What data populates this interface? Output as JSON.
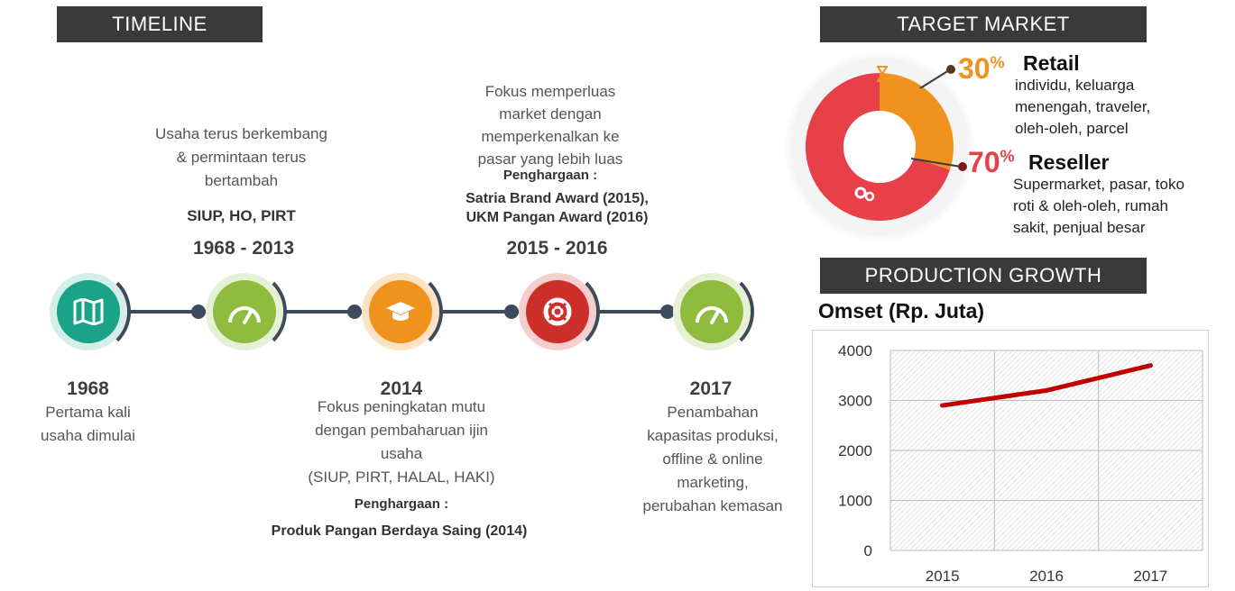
{
  "timeline": {
    "header": "TIMELINE",
    "milestones": [
      {
        "year": "1968",
        "lines": [
          "Pertama kali",
          "usaha dimulai"
        ]
      },
      {
        "range": "1968 - 2013",
        "top_lines": [
          "Usaha terus berkembang",
          "& permintaan terus",
          "bertambah"
        ],
        "top_bold": "SIUP, HO, PIRT"
      },
      {
        "year": "2014",
        "lines": [
          "Fokus peningkatan mutu",
          "dengan pembaharuan ijin",
          "usaha",
          "(SIUP, PIRT, HALAL, HAKI)"
        ],
        "award_label": "Penghargaan :",
        "award": "Produk Pangan Berdaya Saing (2014)"
      },
      {
        "range": "2015 - 2016",
        "top_lines": [
          "Fokus memperluas",
          "market dengan",
          "memperkenalkan ke",
          "pasar yang lebih luas"
        ],
        "award_label": "Penghargaan :",
        "awards": [
          "Satria Brand Award (2015),",
          "UKM Pangan Award (2016)"
        ]
      },
      {
        "year": "2017",
        "lines": [
          "Penambahan",
          "kapasitas produksi,",
          "offline & online",
          "marketing,",
          "perubahan kemasan"
        ]
      }
    ],
    "circle_icons": [
      "map-icon",
      "gauge-icon",
      "graduation-cap-icon",
      "lifebuoy-icon",
      "gauge-icon"
    ],
    "circle_colors": [
      "#1aa389",
      "#8fbc3f",
      "#f0921e",
      "#cc2f2a",
      "#8fbc3f"
    ]
  },
  "target_market": {
    "header": "TARGET MARKET",
    "segments": [
      {
        "pct": "30",
        "pct_sign": "%",
        "title": "Retail",
        "lines": [
          "individu, keluarga",
          "menengah, traveler,",
          "oleh-oleh, parcel"
        ],
        "color": "#f0921e",
        "value": 30
      },
      {
        "pct": "70",
        "pct_sign": "%",
        "title": "Reseller",
        "lines": [
          "Supermarket, pasar, toko",
          "roti & oleh-oleh, rumah",
          "sakit, penjual besar"
        ],
        "color": "#e84048",
        "value": 70
      }
    ]
  },
  "production": {
    "header": "PRODUCTION GROWTH",
    "title": "Omset (Rp. Juta)"
  },
  "chart_data": {
    "type": "line",
    "title": "Omset (Rp. Juta)",
    "categories": [
      "2015",
      "2016",
      "2017"
    ],
    "series": [
      {
        "values": [
          2900,
          3200,
          3700
        ]
      }
    ],
    "ylim": [
      0,
      4000
    ],
    "yticks": [
      "0",
      "1000",
      "2000",
      "3000",
      "4000"
    ],
    "color": "#c00000",
    "grid": true
  }
}
